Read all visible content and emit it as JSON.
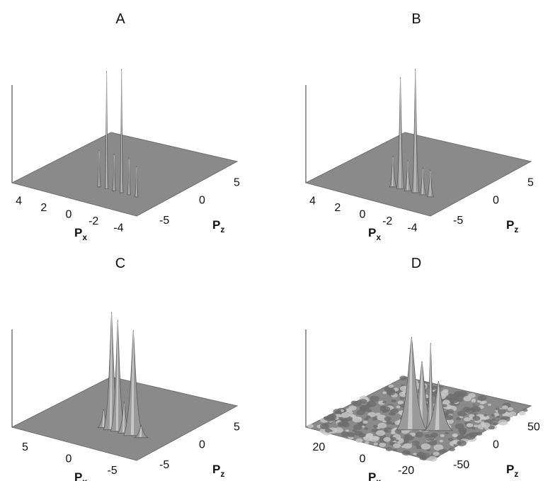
{
  "chart_data": [
    {
      "type": "surface",
      "panel": "A",
      "xlabel": "P",
      "xlabel_sub": "x",
      "zlabel": "P",
      "zlabel_sub": "z",
      "x_ticks": [
        "4",
        "2",
        "0",
        "-2",
        "-4"
      ],
      "z_ticks": [
        "5",
        "0",
        "-5"
      ],
      "x_range": [
        -5,
        5
      ],
      "z_range": [
        -5,
        5
      ],
      "surface": "flat",
      "peaks": [
        {
          "x": 0.0,
          "z": -2.5,
          "h": 0.3,
          "w": 0.05
        },
        {
          "x": -0.6,
          "z": -2.5,
          "h": 0.95,
          "w": 0.05
        },
        {
          "x": -1.2,
          "z": -2.5,
          "h": 0.3,
          "w": 0.05
        },
        {
          "x": -1.8,
          "z": -2.5,
          "h": 1.0,
          "w": 0.05
        },
        {
          "x": -2.4,
          "z": -2.5,
          "h": 0.3,
          "w": 0.05
        },
        {
          "x": -3.0,
          "z": -2.5,
          "h": 0.25,
          "w": 0.05
        }
      ]
    },
    {
      "type": "surface",
      "panel": "B",
      "xlabel": "P",
      "xlabel_sub": "x",
      "zlabel": "P",
      "zlabel_sub": "z",
      "x_ticks": [
        "4",
        "2",
        "0",
        "-2",
        "-4"
      ],
      "z_ticks": [
        "5",
        "0",
        "-5"
      ],
      "x_range": [
        -5,
        5
      ],
      "z_range": [
        -5,
        5
      ],
      "surface": "flat",
      "peaks": [
        {
          "x": 0.0,
          "z": -2.5,
          "h": 0.25,
          "w": 0.12
        },
        {
          "x": -0.6,
          "z": -2.5,
          "h": 0.9,
          "w": 0.13
        },
        {
          "x": -1.2,
          "z": -2.5,
          "h": 0.25,
          "w": 0.12
        },
        {
          "x": -1.8,
          "z": -2.5,
          "h": 1.0,
          "w": 0.13
        },
        {
          "x": -2.4,
          "z": -2.5,
          "h": 0.22,
          "w": 0.12
        },
        {
          "x": -3.0,
          "z": -2.5,
          "h": 0.22,
          "w": 0.12
        }
      ]
    },
    {
      "type": "surface",
      "panel": "C",
      "xlabel": "P",
      "xlabel_sub": "x",
      "zlabel": "P",
      "zlabel_sub": "z",
      "x_ticks": [
        "5",
        "0",
        "-5"
      ],
      "z_ticks": [
        "5",
        "0",
        "-5"
      ],
      "x_range": [
        -8,
        8
      ],
      "z_range": [
        -8,
        8
      ],
      "surface": "flat",
      "peaks": [
        {
          "x": 0.2,
          "z": -3.0,
          "h": 0.15,
          "w": 0.35
        },
        {
          "x": -0.8,
          "z": -3.0,
          "h": 0.95,
          "w": 0.45
        },
        {
          "x": -1.6,
          "z": -3.0,
          "h": 0.9,
          "w": 0.4
        },
        {
          "x": -2.4,
          "z": -3.0,
          "h": 0.25,
          "w": 0.35
        },
        {
          "x": -3.6,
          "z": -3.0,
          "h": 0.85,
          "w": 0.55
        },
        {
          "x": -4.6,
          "z": -3.0,
          "h": 0.1,
          "w": 0.4
        }
      ]
    },
    {
      "type": "surface",
      "panel": "D",
      "xlabel": "P",
      "xlabel_sub": "x",
      "zlabel": "P",
      "zlabel_sub": "z",
      "x_ticks": [
        "20",
        "0",
        "-20"
      ],
      "z_ticks": [
        "50",
        "0",
        "-50"
      ],
      "x_range": [
        -30,
        30
      ],
      "z_range": [
        -60,
        60
      ],
      "surface": "noisy",
      "peaks": [
        {
          "x": -5,
          "z": -20,
          "h": 0.75,
          "w": 3.2
        },
        {
          "x": -8,
          "z": -15,
          "h": 0.55,
          "w": 2.6
        },
        {
          "x": -11,
          "z": -12,
          "h": 0.7,
          "w": 1.0
        },
        {
          "x": -14,
          "z": -10,
          "h": 0.4,
          "w": 3.0
        }
      ]
    }
  ],
  "colors": {
    "surface": "#8a8a8a",
    "edge": "#6f6f6f",
    "axis": "#555555"
  }
}
